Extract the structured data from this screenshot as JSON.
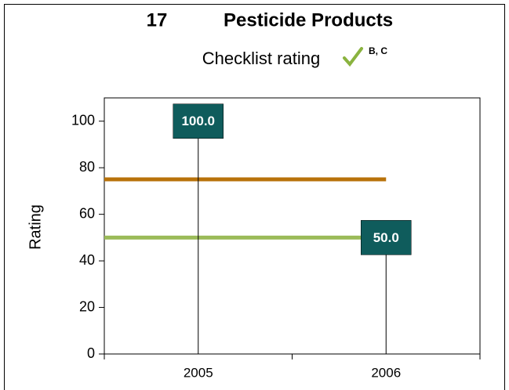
{
  "chart_data": {
    "type": "line",
    "title_number": "17",
    "title": "Pesticide Products",
    "subtitle": "Checklist rating",
    "subtitle_note": "B, C",
    "y_label": "Rating",
    "categories": [
      "2005",
      "2006"
    ],
    "values": [
      100,
      50
    ],
    "value_labels": [
      "100.0",
      "50.0"
    ],
    "color": "#0f5c5c",
    "reference_lines": [
      {
        "value": 75,
        "color": "#b8720a"
      },
      {
        "value": 50,
        "color": "#9bbb59"
      }
    ],
    "ylim": [
      0,
      110
    ],
    "yticks": [
      0,
      20,
      40,
      60,
      80,
      100
    ]
  }
}
